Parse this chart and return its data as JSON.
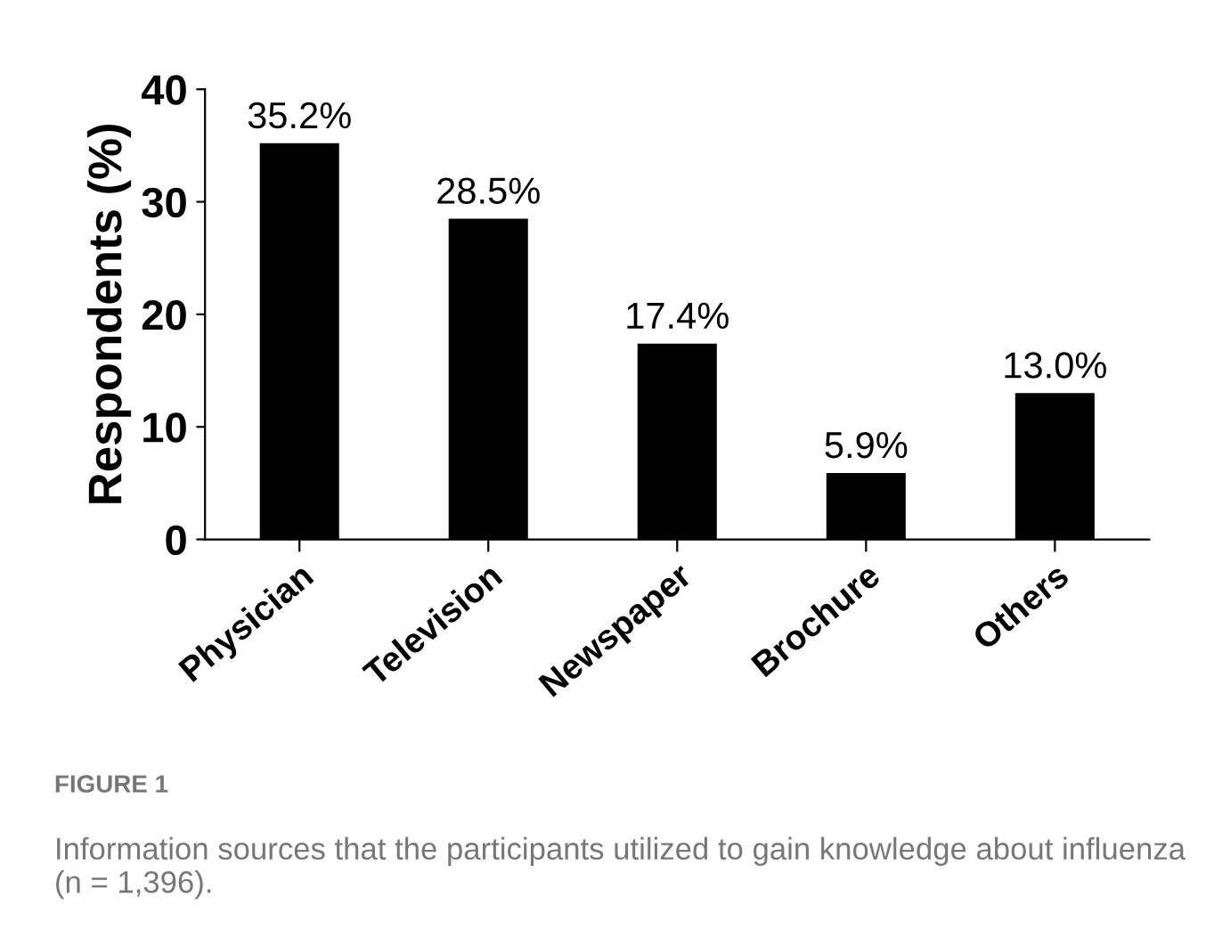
{
  "chart_data": {
    "type": "bar",
    "ylabel": "Respondents (%)",
    "categories": [
      "Physician",
      "Television",
      "Newspaper",
      "Brochure",
      "Others"
    ],
    "values": [
      35.2,
      28.5,
      17.4,
      5.9,
      13.0
    ],
    "value_labels": [
      "35.2%",
      "28.5%",
      "17.4%",
      "5.9%",
      "13.0%"
    ],
    "color": "#000000",
    "ylim": [
      0,
      40
    ],
    "yticks": [
      0,
      10,
      20,
      30,
      40
    ],
    "grid": false,
    "legend": false,
    "annotations": [
      "FIGURE 1",
      "Information sources that the participants utilized to gain knowledge about influenza (n = 1,396)."
    ]
  }
}
